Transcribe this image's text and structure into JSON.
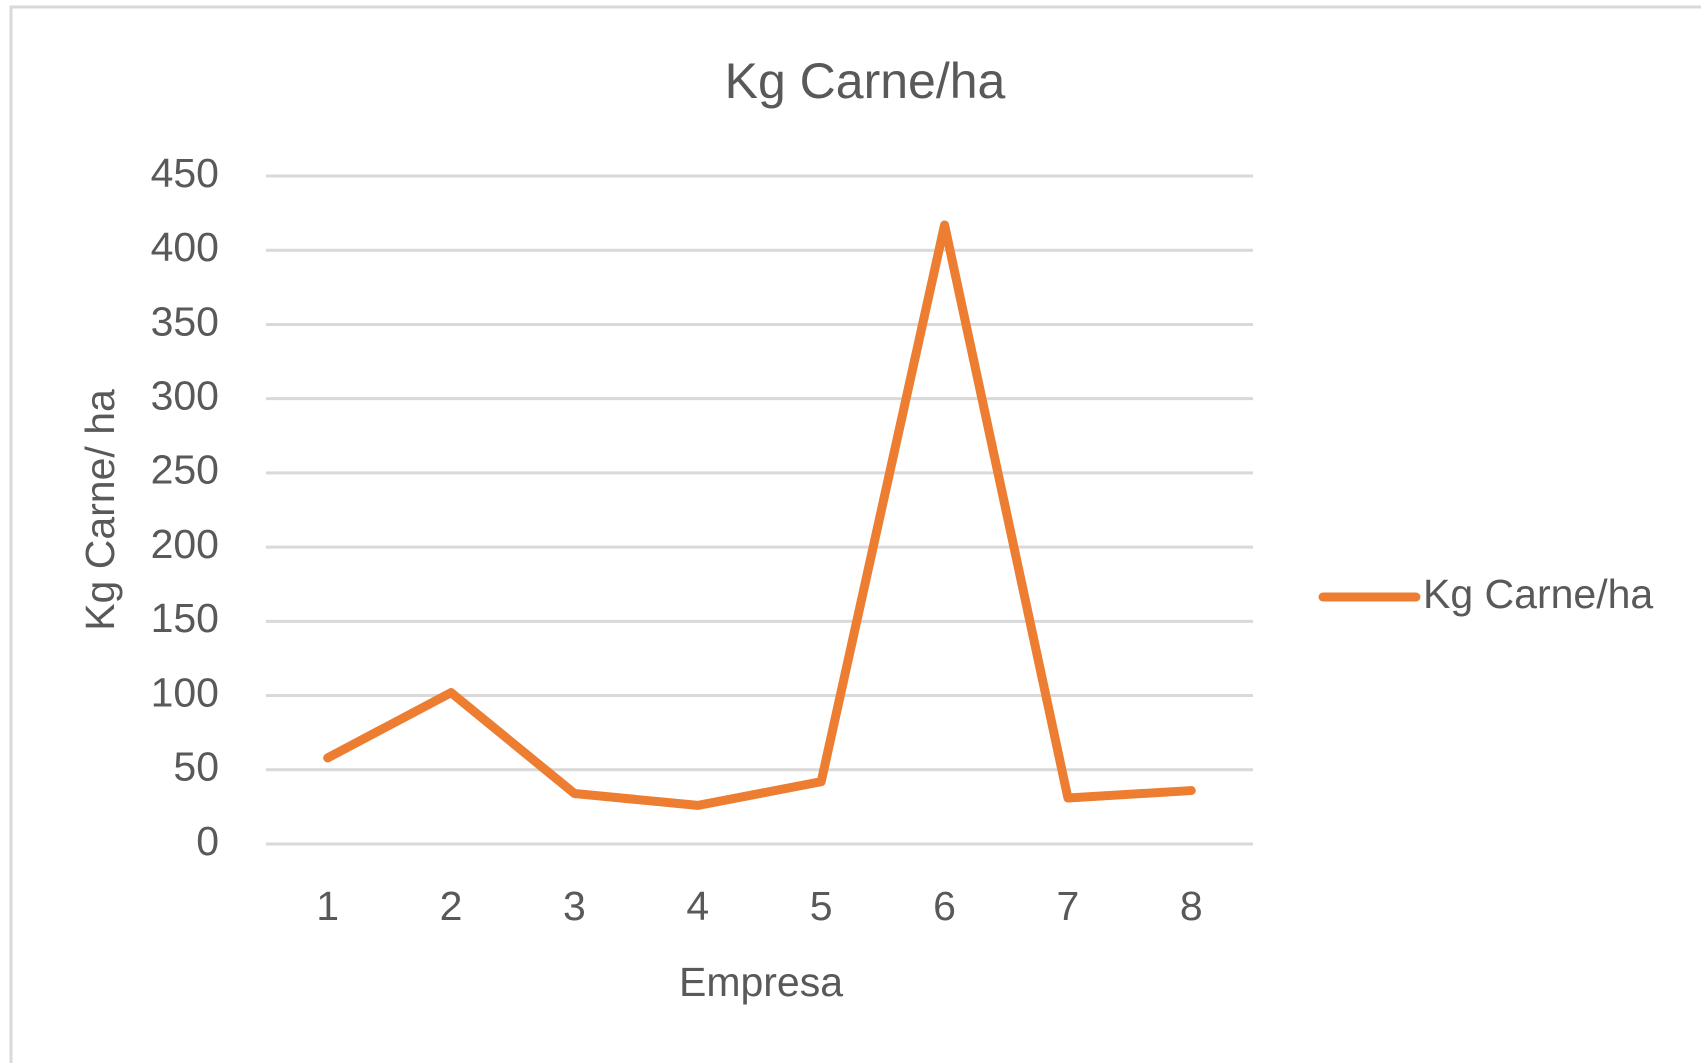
{
  "chart_data": {
    "type": "line",
    "title": "Kg Carne/ha",
    "x_label": "Empresa",
    "y_label": "Kg Carne/ ha",
    "categories": [
      "1",
      "2",
      "3",
      "4",
      "5",
      "6",
      "7",
      "8"
    ],
    "series": [
      {
        "name": "Kg Carne/ha",
        "color": "#ed7d31",
        "values": [
          58,
          102,
          34,
          26,
          42,
          417,
          31,
          36
        ]
      }
    ],
    "ylim": [
      0,
      450
    ],
    "yticks": [
      0,
      50,
      100,
      150,
      200,
      250,
      300,
      350,
      400,
      450
    ],
    "grid": true,
    "legend": "right"
  }
}
